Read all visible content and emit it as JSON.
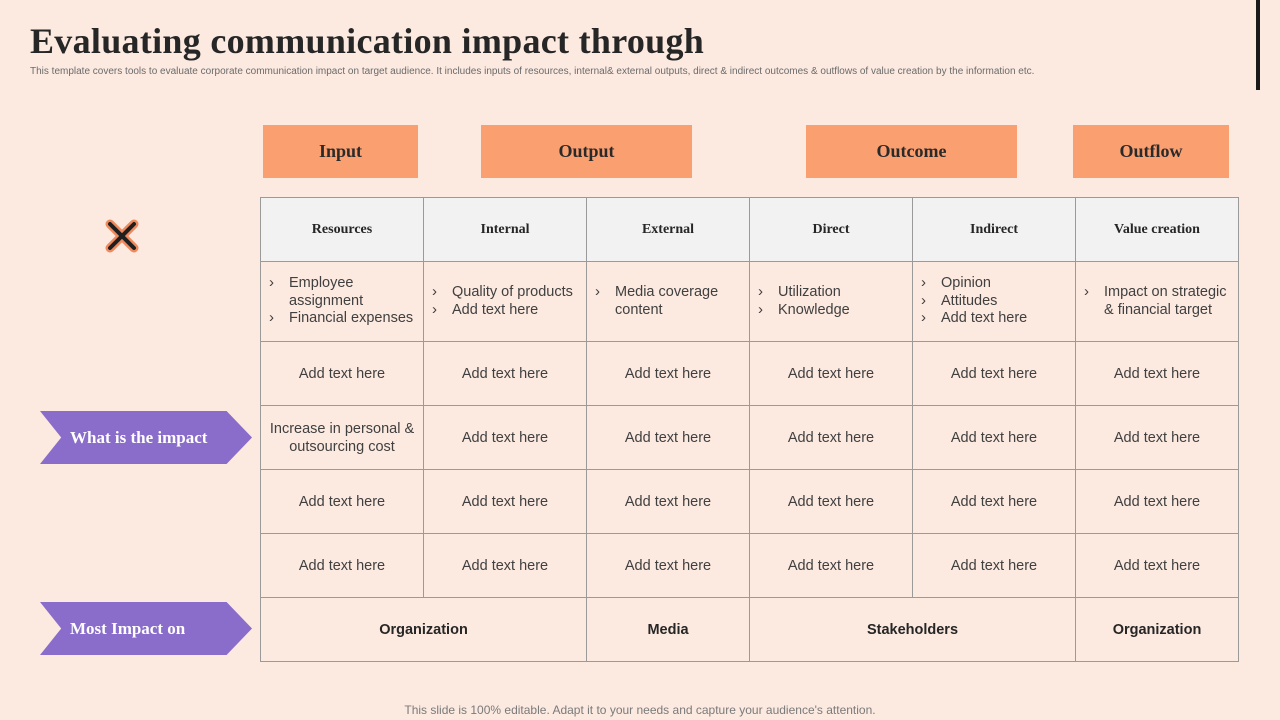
{
  "title": "Evaluating communication impact through",
  "subtitle": "This template covers tools to evaluate corporate communication impact on target audience. It includes inputs of resources, internal& external outputs, direct & indirect outcomes & outflows of value creation by the information etc.",
  "phases": [
    "Input",
    "Output",
    "Outcome",
    "Outflow"
  ],
  "side_labels": {
    "impact": "What is the impact",
    "most_impact": "Most Impact on"
  },
  "columns": [
    "Resources",
    "Internal",
    "External",
    "Direct",
    "Indirect",
    "Value creation"
  ],
  "bullet_row": [
    [
      "Employee assignment",
      "Financial expenses"
    ],
    [
      "Quality of products",
      "Add text here"
    ],
    [
      "Media coverage content"
    ],
    [
      "Utilization",
      "Knowledge"
    ],
    [
      "Opinion",
      "Attitudes",
      "Add text here"
    ],
    [
      "Impact on strategic & financial target"
    ]
  ],
  "rows": [
    [
      "Add text here",
      "Add text here",
      "Add text here",
      "Add text here",
      "Add text here",
      "Add text here"
    ],
    [
      "Increase in personal & outsourcing cost",
      "Add text here",
      "Add text here",
      "Add text here",
      "Add text here",
      "Add text here"
    ],
    [
      "Add text here",
      "Add text here",
      "Add text here",
      "Add text here",
      "Add text here",
      "Add text here"
    ],
    [
      "Add text here",
      "Add text here",
      "Add text here",
      "Add text here",
      "Add text here",
      "Add text here"
    ]
  ],
  "most_impact": [
    "Organization",
    "Media",
    "Stakeholders",
    "Organization"
  ],
  "footer": "This slide is 100% editable. Adapt it to your needs and capture your audience's attention.",
  "colors": {
    "background": "#fce9e0",
    "phase": "#fa9f70",
    "arrow": "#8a6ccb",
    "header_cell": "#f2f2f2"
  },
  "icons": [
    "cross-icon"
  ]
}
